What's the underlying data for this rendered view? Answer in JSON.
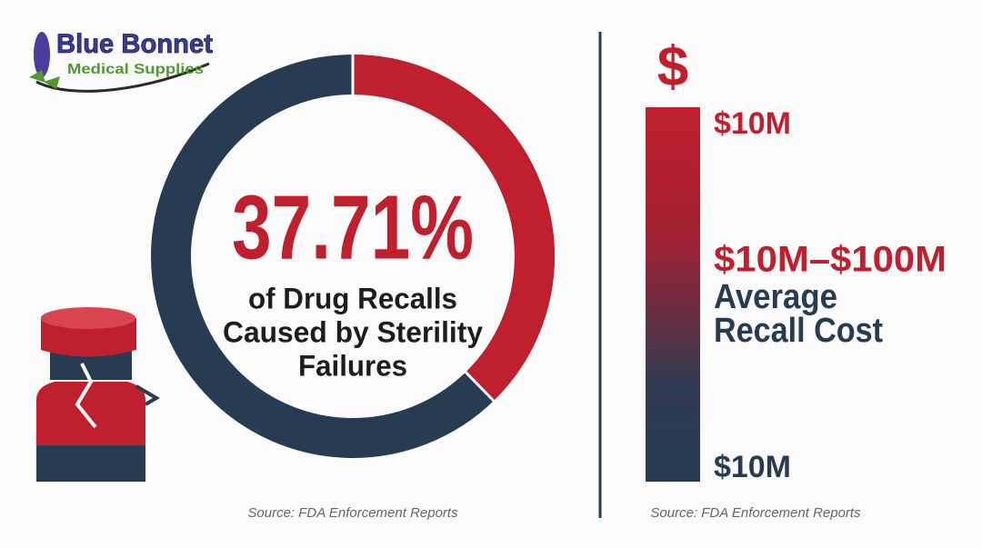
{
  "logo": {
    "line1": "Blue Bonnet",
    "line2": "Medical Supplies"
  },
  "donut": {
    "value": 37.71,
    "value_label": "37.71%",
    "caption_lines": [
      "of Drug Recalls",
      "Caused by Sterility",
      "Failures"
    ],
    "colors": [
      "#c0202e",
      "#273c52"
    ],
    "source": "Source: FDA Enforcement Reports"
  },
  "cost_bar": {
    "icon": "$",
    "top_label": "$10M",
    "mid_label": "$10M–$100M",
    "description_lines": [
      "Average",
      "Recall Cost"
    ],
    "bottom_label": "$10M",
    "source": "Source: FDA Enforcement Reports"
  }
}
